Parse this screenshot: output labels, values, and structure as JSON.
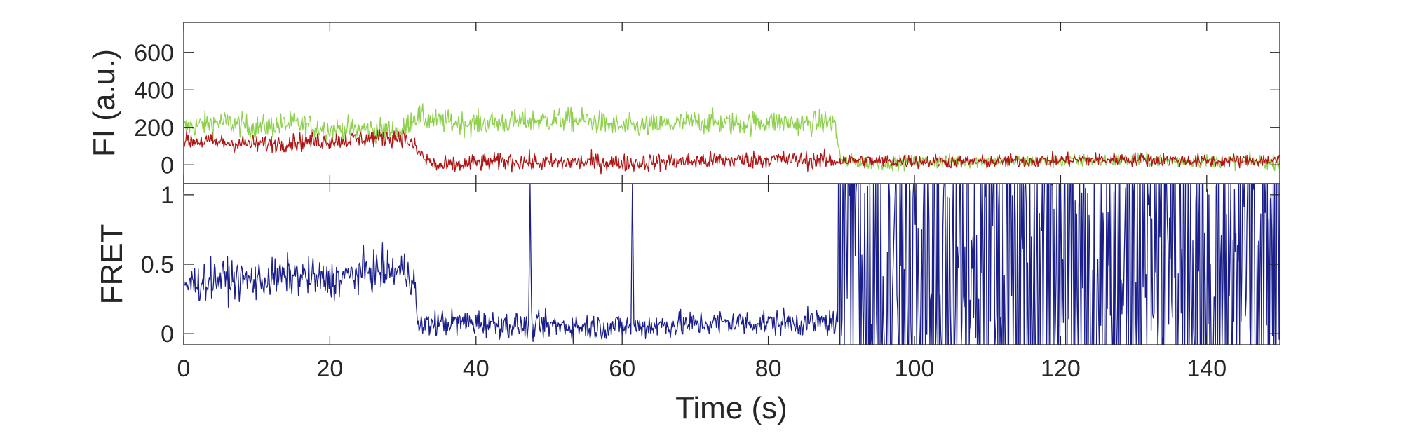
{
  "chart_data": [
    {
      "type": "line",
      "panel": "top",
      "title": "",
      "xlabel": "",
      "ylabel": "FI (a.u.)",
      "xlim": [
        0,
        150
      ],
      "ylim": [
        -100,
        760
      ],
      "yticks": [
        0,
        200,
        400,
        600
      ],
      "ytick_labels": [
        "0",
        "200",
        "400",
        "600"
      ],
      "x_tick_labels_shown": false,
      "grid": false,
      "colors": {
        "donor": "#8fd14f",
        "acceptor": "#b01515"
      },
      "series": [
        {
          "color": "#8fd14f",
          "x": [
            0,
            5,
            10,
            15,
            20,
            25,
            30,
            31.5,
            35,
            40,
            45,
            50,
            55,
            60,
            65,
            70,
            75,
            80,
            85,
            89,
            90,
            95,
            100,
            110,
            120,
            130,
            140,
            150
          ],
          "y": [
            200,
            230,
            200,
            220,
            190,
            190,
            180,
            260,
            230,
            220,
            230,
            240,
            240,
            200,
            210,
            230,
            220,
            230,
            220,
            230,
            20,
            10,
            15,
            20,
            20,
            25,
            20,
            15
          ]
        },
        {
          "color": "#b01515",
          "x": [
            0,
            5,
            10,
            15,
            20,
            25,
            30,
            31.5,
            33,
            35,
            40,
            45,
            50,
            55,
            60,
            65,
            70,
            75,
            80,
            85,
            89,
            90,
            95,
            100,
            110,
            120,
            130,
            140,
            150
          ],
          "y": [
            130,
            120,
            110,
            120,
            130,
            140,
            150,
            100,
            30,
            -10,
            10,
            20,
            10,
            15,
            10,
            15,
            20,
            25,
            30,
            25,
            20,
            25,
            20,
            20,
            15,
            25,
            30,
            20,
            25
          ]
        }
      ]
    },
    {
      "type": "line",
      "panel": "bottom",
      "title": "",
      "xlabel": "Time (s)",
      "ylabel": "FRET",
      "xlim": [
        0,
        150
      ],
      "ylim": [
        -0.08,
        1.08
      ],
      "yticks": [
        0,
        0.5,
        1
      ],
      "ytick_labels": [
        "0",
        "0.5",
        "1"
      ],
      "xticks": [
        0,
        20,
        40,
        60,
        80,
        100,
        120,
        140
      ],
      "xtick_labels": [
        "0",
        "20",
        "40",
        "60",
        "80",
        "100",
        "120",
        "140"
      ],
      "grid": false,
      "series": [
        {
          "color": "#1b1f8a",
          "x": [
            0,
            5,
            10,
            15,
            20,
            25,
            30,
            31.5,
            32,
            35,
            40,
            45,
            47.2,
            47.4,
            47.6,
            50,
            55,
            60,
            61.2,
            61.4,
            61.6,
            65,
            70,
            75,
            80,
            85,
            89.5,
            90,
            150
          ],
          "y": [
            0.35,
            0.4,
            0.38,
            0.42,
            0.38,
            0.45,
            0.45,
            0.42,
            0.05,
            0.08,
            0.08,
            0.06,
            0.05,
            1.08,
            0.05,
            0.06,
            0.05,
            0.05,
            0.05,
            1.08,
            0.05,
            0.06,
            0.07,
            0.08,
            0.08,
            0.08,
            0.08,
            0.5,
            0.5
          ],
          "note_style": "after 90 s the trace fluctuates noisily across the full range"
        }
      ]
    }
  ]
}
